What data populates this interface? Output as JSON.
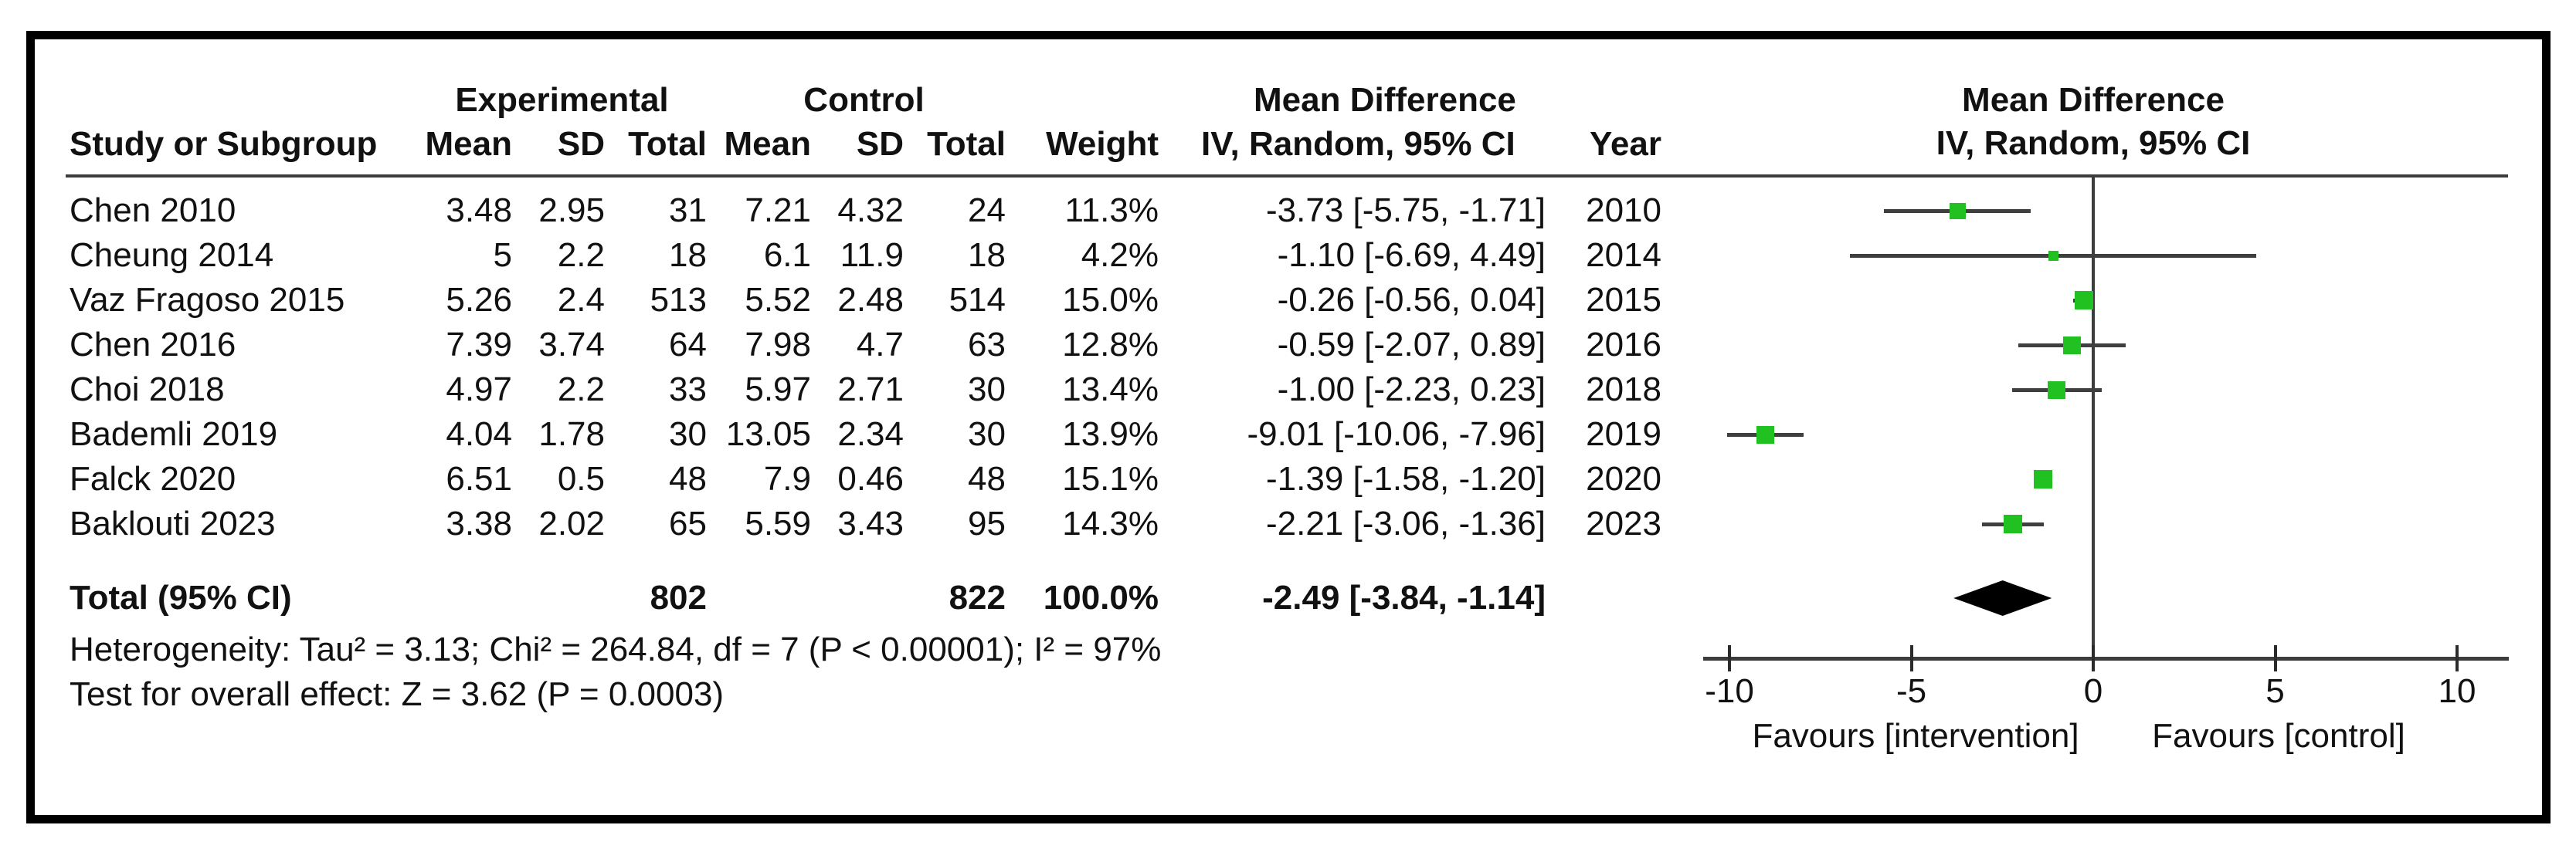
{
  "colors": {
    "marker_green": "#22c122",
    "line_gray": "#3f3f3f",
    "axis_black": "#2b2b2b",
    "diamond_black": "#000000"
  },
  "table": {
    "group_headers": {
      "experimental": "Experimental",
      "control": "Control",
      "mean_difference_left": "Mean Difference",
      "mean_difference_right": "Mean Difference"
    },
    "subheaders": {
      "study": "Study or Subgroup",
      "mean_exp": "Mean",
      "sd_exp": "SD",
      "total_exp": "Total",
      "mean_ctl": "Mean",
      "sd_ctl": "SD",
      "total_ctl": "Total",
      "weight": "Weight",
      "iv_left": "IV, Random, 95% CI",
      "year": "Year",
      "iv_right": "IV, Random, 95% CI"
    },
    "rows": [
      {
        "study": "Chen 2010",
        "exp_mean": "3.48",
        "exp_sd": "2.95",
        "exp_total": "31",
        "ctl_mean": "7.21",
        "ctl_sd": "4.32",
        "ctl_total": "24",
        "weight": "11.3%",
        "md_ci": "-3.73 [-5.75, -1.71]",
        "year": "2010"
      },
      {
        "study": "Cheung 2014",
        "exp_mean": "5",
        "exp_sd": "2.2",
        "exp_total": "18",
        "ctl_mean": "6.1",
        "ctl_sd": "11.9",
        "ctl_total": "18",
        "weight": "4.2%",
        "md_ci": "-1.10 [-6.69, 4.49]",
        "year": "2014"
      },
      {
        "study": "Vaz Fragoso 2015",
        "exp_mean": "5.26",
        "exp_sd": "2.4",
        "exp_total": "513",
        "ctl_mean": "5.52",
        "ctl_sd": "2.48",
        "ctl_total": "514",
        "weight": "15.0%",
        "md_ci": "-0.26 [-0.56, 0.04]",
        "year": "2015"
      },
      {
        "study": "Chen 2016",
        "exp_mean": "7.39",
        "exp_sd": "3.74",
        "exp_total": "64",
        "ctl_mean": "7.98",
        "ctl_sd": "4.7",
        "ctl_total": "63",
        "weight": "12.8%",
        "md_ci": "-0.59 [-2.07, 0.89]",
        "year": "2016"
      },
      {
        "study": "Choi 2018",
        "exp_mean": "4.97",
        "exp_sd": "2.2",
        "exp_total": "33",
        "ctl_mean": "5.97",
        "ctl_sd": "2.71",
        "ctl_total": "30",
        "weight": "13.4%",
        "md_ci": "-1.00 [-2.23, 0.23]",
        "year": "2018"
      },
      {
        "study": "Bademli 2019",
        "exp_mean": "4.04",
        "exp_sd": "1.78",
        "exp_total": "30",
        "ctl_mean": "13.05",
        "ctl_sd": "2.34",
        "ctl_total": "30",
        "weight": "13.9%",
        "md_ci": "-9.01 [-10.06, -7.96]",
        "year": "2019"
      },
      {
        "study": "Falck 2020",
        "exp_mean": "6.51",
        "exp_sd": "0.5",
        "exp_total": "48",
        "ctl_mean": "7.9",
        "ctl_sd": "0.46",
        "ctl_total": "48",
        "weight": "15.1%",
        "md_ci": "-1.39 [-1.58, -1.20]",
        "year": "2020"
      },
      {
        "study": "Baklouti 2023",
        "exp_mean": "3.38",
        "exp_sd": "2.02",
        "exp_total": "65",
        "ctl_mean": "5.59",
        "ctl_sd": "3.43",
        "ctl_total": "95",
        "weight": "14.3%",
        "md_ci": "-2.21 [-3.06, -1.36]",
        "year": "2023"
      }
    ],
    "total_row": {
      "label": "Total (95% CI)",
      "exp_total": "802",
      "ctl_total": "822",
      "weight": "100.0%",
      "md_ci": "-2.49 [-3.84, -1.14]"
    },
    "heterogeneity": "Heterogeneity: Tau² = 3.13; Chi² = 264.84, df = 7 (P < 0.00001); I² = 97%",
    "overall_effect": "Test for overall effect: Z = 3.62 (P = 0.0003)"
  },
  "chart_data": {
    "type": "forest",
    "effect_measure": "Mean Difference",
    "model": "IV, Random, 95% CI",
    "xlim": [
      -10,
      10
    ],
    "ticks": [
      -10,
      -5,
      0,
      5,
      10
    ],
    "tick_labels": [
      "-10",
      "-5",
      "0",
      "5",
      "10"
    ],
    "favours_left": "Favours [intervention]",
    "favours_right": "Favours [control]",
    "studies": [
      {
        "name": "Chen 2010",
        "md": -3.73,
        "lo": -5.75,
        "hi": -1.71,
        "weight": 11.3,
        "year": 2010
      },
      {
        "name": "Cheung 2014",
        "md": -1.1,
        "lo": -6.69,
        "hi": 4.49,
        "weight": 4.2,
        "year": 2014
      },
      {
        "name": "Vaz Fragoso 2015",
        "md": -0.26,
        "lo": -0.56,
        "hi": 0.04,
        "weight": 15.0,
        "year": 2015
      },
      {
        "name": "Chen 2016",
        "md": -0.59,
        "lo": -2.07,
        "hi": 0.89,
        "weight": 12.8,
        "year": 2016
      },
      {
        "name": "Choi 2018",
        "md": -1.0,
        "lo": -2.23,
        "hi": 0.23,
        "weight": 13.4,
        "year": 2018
      },
      {
        "name": "Bademli 2019",
        "md": -9.01,
        "lo": -10.06,
        "hi": -7.96,
        "weight": 13.9,
        "year": 2019
      },
      {
        "name": "Falck 2020",
        "md": -1.39,
        "lo": -1.58,
        "hi": -1.2,
        "weight": 15.1,
        "year": 2020
      },
      {
        "name": "Baklouti 2023",
        "md": -2.21,
        "lo": -3.06,
        "hi": -1.36,
        "weight": 14.3,
        "year": 2023
      }
    ],
    "total": {
      "md": -2.49,
      "lo": -3.84,
      "hi": -1.14,
      "weight": 100.0
    },
    "heterogeneity": {
      "tau2": 3.13,
      "chi2": 264.84,
      "df": 7,
      "p": "< 0.00001",
      "i2": "97%"
    },
    "overall_effect": {
      "z": 3.62,
      "p": 0.0003
    }
  }
}
